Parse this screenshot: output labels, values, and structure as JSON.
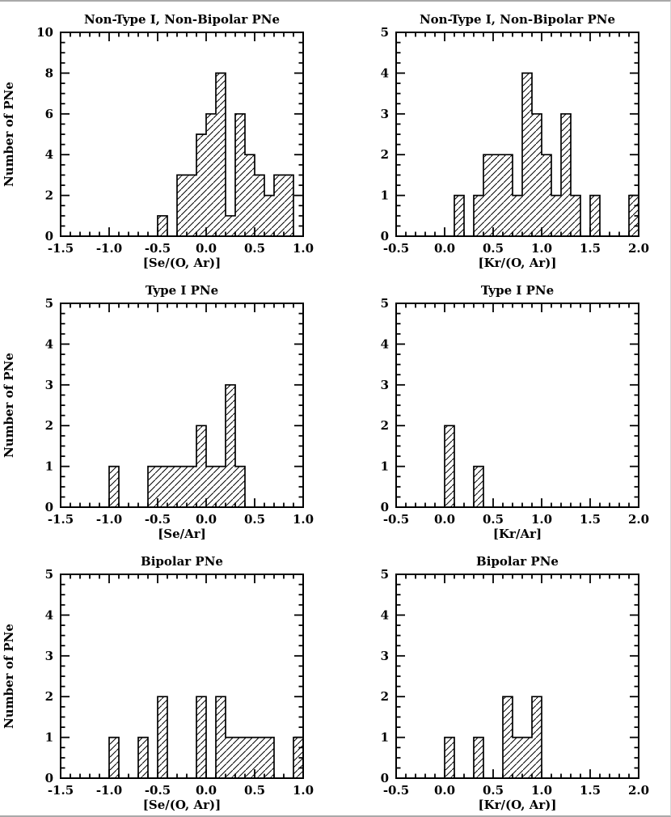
{
  "chart_data": [
    {
      "type": "bar",
      "subtype": "histogram",
      "title": "Non-Type I, Non-Bipolar PNe",
      "xlabel": "[Se/(O, Ar)]",
      "ylabel": "Number of PNe",
      "xlim": [
        -1.5,
        1.0
      ],
      "ylim": [
        0,
        10
      ],
      "x_tick_labels": [
        "-1.5",
        "-1.0",
        "-0.5",
        "0.0",
        "0.5",
        "1.0"
      ],
      "y_tick_labels": [
        "0",
        "2",
        "4",
        "6",
        "8",
        "10"
      ],
      "x_minor_step": 0.1,
      "y_minor_step": 0.5,
      "bin_width": 0.1,
      "bin_start": -0.5,
      "counts": [
        1,
        0,
        3,
        3,
        5,
        6,
        8,
        1,
        6,
        4,
        3,
        2,
        3,
        3
      ],
      "hatch": "diagonal",
      "grid": "off",
      "legend": "none"
    },
    {
      "type": "bar",
      "subtype": "histogram",
      "title": "Non-Type I, Non-Bipolar PNe",
      "xlabel": "[Kr/(O, Ar)]",
      "ylabel": "",
      "xlim": [
        -0.5,
        2.0
      ],
      "ylim": [
        0,
        5
      ],
      "x_tick_labels": [
        "-0.5",
        "0.0",
        "0.5",
        "1.0",
        "1.5",
        "2.0"
      ],
      "y_tick_labels": [
        "0",
        "1",
        "2",
        "3",
        "4",
        "5"
      ],
      "x_minor_step": 0.1,
      "y_minor_step": 0.25,
      "bin_width": 0.1,
      "bin_start": 0.1,
      "counts": [
        1,
        0,
        1,
        2,
        2,
        2,
        1,
        4,
        3,
        2,
        1,
        3,
        1,
        0,
        1,
        0,
        0,
        0,
        1
      ],
      "hatch": "diagonal",
      "grid": "off",
      "legend": "none"
    },
    {
      "type": "bar",
      "subtype": "histogram",
      "title": "Type I PNe",
      "xlabel": "[Se/Ar]",
      "ylabel": "Number of PNe",
      "xlim": [
        -1.5,
        1.0
      ],
      "ylim": [
        0,
        5
      ],
      "x_tick_labels": [
        "-1.5",
        "-1.0",
        "-0.5",
        "0.0",
        "0.5",
        "1.0"
      ],
      "y_tick_labels": [
        "0",
        "1",
        "2",
        "3",
        "4",
        "5"
      ],
      "x_minor_step": 0.1,
      "y_minor_step": 0.25,
      "bin_width": 0.1,
      "bin_start": -1.0,
      "counts": [
        1,
        0,
        0,
        0,
        1,
        1,
        1,
        1,
        1,
        2,
        1,
        1,
        3,
        1
      ],
      "hatch": "diagonal",
      "grid": "off",
      "legend": "none"
    },
    {
      "type": "bar",
      "subtype": "histogram",
      "title": "Type I PNe",
      "xlabel": "[Kr/Ar]",
      "ylabel": "",
      "xlim": [
        -0.5,
        2.0
      ],
      "ylim": [
        0,
        5
      ],
      "x_tick_labels": [
        "-0.5",
        "0.0",
        "0.5",
        "1.0",
        "1.5",
        "2.0"
      ],
      "y_tick_labels": [
        "0",
        "1",
        "2",
        "3",
        "4",
        "5"
      ],
      "x_minor_step": 0.1,
      "y_minor_step": 0.25,
      "bin_width": 0.1,
      "bin_start": 0.0,
      "counts": [
        2,
        0,
        0,
        1
      ],
      "hatch": "diagonal",
      "grid": "off",
      "legend": "none"
    },
    {
      "type": "bar",
      "subtype": "histogram",
      "title": "Bipolar PNe",
      "xlabel": "[Se/(O, Ar)]",
      "ylabel": "Number of PNe",
      "xlim": [
        -1.5,
        1.0
      ],
      "ylim": [
        0,
        5
      ],
      "x_tick_labels": [
        "-1.5",
        "-1.0",
        "-0.5",
        "0.0",
        "0.5",
        "1.0"
      ],
      "y_tick_labels": [
        "0",
        "1",
        "2",
        "3",
        "4",
        "5"
      ],
      "x_minor_step": 0.1,
      "y_minor_step": 0.25,
      "bin_width": 0.1,
      "bin_start": -1.0,
      "counts": [
        1,
        0,
        0,
        1,
        0,
        2,
        0,
        0,
        0,
        2,
        0,
        2,
        1,
        1,
        1,
        1,
        1,
        0,
        0,
        1
      ],
      "hatch": "diagonal",
      "grid": "off",
      "legend": "none"
    },
    {
      "type": "bar",
      "subtype": "histogram",
      "title": "Bipolar PNe",
      "xlabel": "[Kr/(O, Ar)]",
      "ylabel": "",
      "xlim": [
        -0.5,
        2.0
      ],
      "ylim": [
        0,
        5
      ],
      "x_tick_labels": [
        "-0.5",
        "0.0",
        "0.5",
        "1.0",
        "1.5",
        "2.0"
      ],
      "y_tick_labels": [
        "0",
        "1",
        "2",
        "3",
        "4",
        "5"
      ],
      "x_minor_step": 0.1,
      "y_minor_step": 0.25,
      "bin_width": 0.1,
      "bin_start": 0.0,
      "counts": [
        1,
        0,
        0,
        1,
        0,
        0,
        2,
        1,
        1,
        2
      ],
      "hatch": "diagonal",
      "grid": "off",
      "legend": "none"
    }
  ]
}
